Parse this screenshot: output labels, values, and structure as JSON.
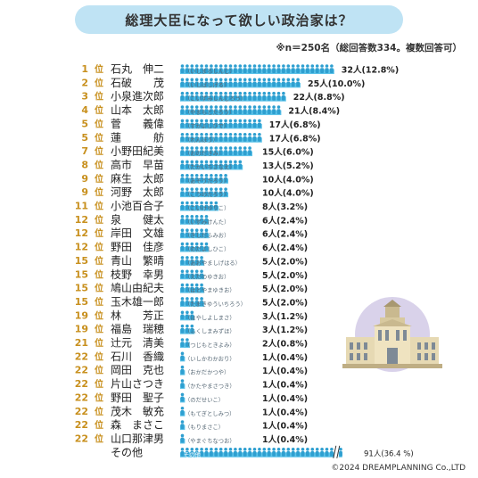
{
  "title": "総理大臣になって欲しい政治家は？",
  "note": "※n＝250名（総回答数334。複数回答可）",
  "copyright": "©2024 DREAMPLANNING Co.,LTD",
  "colors": {
    "bar": "#5dc3e9",
    "rank": "#c8901e",
    "figure": "#2e9fd0",
    "title_bg": "#bfe3f4"
  },
  "icons": {
    "person": "person-figure-icon",
    "building": "diet-building-icon"
  },
  "chart_data": {
    "type": "bar",
    "orientation": "horizontal",
    "bars": [
      {
        "rank": "1",
        "name": "石丸　伸二",
        "reading": "（いしまるしんじ）",
        "value": 32,
        "label": "32人(12.8%)"
      },
      {
        "rank": "2",
        "name": "石破　　茂",
        "reading": "（いしばしげる）",
        "value": 25,
        "label": "25人(10.0%)"
      },
      {
        "rank": "3",
        "name": "小泉進次郎",
        "reading": "（こいずみしんじろう）",
        "value": 22,
        "label": "22人(8.8%)"
      },
      {
        "rank": "4",
        "name": "山本　太郎",
        "reading": "（やまもとたろう）",
        "value": 21,
        "label": "21人(8.4%)"
      },
      {
        "rank": "5",
        "name": "菅　　義偉",
        "reading": "（すがよしひで）",
        "value": 17,
        "label": "17人(6.8%)"
      },
      {
        "rank": "5",
        "name": "蓮　　　舫",
        "reading": "（れんほう）",
        "value": 17,
        "label": "17人(6.8%)"
      },
      {
        "rank": "7",
        "name": "小野田紀美",
        "reading": "（おのだきみ）",
        "value": 15,
        "label": "15人(6.0%)"
      },
      {
        "rank": "8",
        "name": "高市　早苗",
        "reading": "（たかいちさなえ）",
        "value": 13,
        "label": "13人(5.2%)"
      },
      {
        "rank": "9",
        "name": "麻生　太郎",
        "reading": "（あそうたろう）",
        "value": 10,
        "label": "10人(4.0%)"
      },
      {
        "rank": "9",
        "name": "河野　太郎",
        "reading": "（こうのたろう）",
        "value": 10,
        "label": "10人(4.0%)"
      },
      {
        "rank": "11",
        "name": "小池百合子",
        "reading": "（こいけゆりこ）",
        "value": 8,
        "label": "8人(3.2%)"
      },
      {
        "rank": "12",
        "name": "泉　　健太",
        "reading": "（いずみけんた）",
        "value": 6,
        "label": "6人(2.4%)"
      },
      {
        "rank": "12",
        "name": "岸田　文雄",
        "reading": "（きしだふみお）",
        "value": 6,
        "label": "6人(2.4%)"
      },
      {
        "rank": "12",
        "name": "野田　佳彦",
        "reading": "（のだよしひこ）",
        "value": 6,
        "label": "6人(2.4%)"
      },
      {
        "rank": "15",
        "name": "青山　繁晴",
        "reading": "（あおやましげはる）",
        "value": 5,
        "label": "5人(2.0%)"
      },
      {
        "rank": "15",
        "name": "枝野　幸男",
        "reading": "（えだのゆきお）",
        "value": 5,
        "label": "5人(2.0%)"
      },
      {
        "rank": "15",
        "name": "鳩山由紀夫",
        "reading": "（はとやまゆきお）",
        "value": 5,
        "label": "5人(2.0%)"
      },
      {
        "rank": "15",
        "name": "玉木雄一郎",
        "reading": "（たまきゆういちろう）",
        "value": 5,
        "label": "5人(2.0%)"
      },
      {
        "rank": "19",
        "name": "林　　芳正",
        "reading": "（はやしよしまさ）",
        "value": 3,
        "label": "3人(1.2%)"
      },
      {
        "rank": "19",
        "name": "福島　瑞穂",
        "reading": "（ふくしまみずほ）",
        "value": 3,
        "label": "3人(1.2%)"
      },
      {
        "rank": "21",
        "name": "辻元　清美",
        "reading": "（つじもときよみ）",
        "value": 2,
        "label": "2人(0.8%)"
      },
      {
        "rank": "22",
        "name": "石川　香織",
        "reading": "（いしかわかおり）",
        "value": 1,
        "label": "1人(0.4%)"
      },
      {
        "rank": "22",
        "name": "岡田　克也",
        "reading": "（おかだかつや）",
        "value": 1,
        "label": "1人(0.4%)"
      },
      {
        "rank": "22",
        "name": "片山さつき",
        "reading": "（かたやまさつき）",
        "value": 1,
        "label": "1人(0.4%)"
      },
      {
        "rank": "22",
        "name": "野田　聖子",
        "reading": "（のだせいこ）",
        "value": 1,
        "label": "1人(0.4%)"
      },
      {
        "rank": "22",
        "name": "茂木　敏充",
        "reading": "（もてぎとしみつ）",
        "value": 1,
        "label": "1人(0.4%)"
      },
      {
        "rank": "22",
        "name": "森　まさこ",
        "reading": "（もりまさこ）",
        "value": 1,
        "label": "1人(0.4%)"
      },
      {
        "rank": "22",
        "name": "山口那津男",
        "reading": "（やまぐちなつお）",
        "value": 1,
        "label": "1人(0.4%)"
      },
      {
        "rank": "",
        "name": "その他",
        "reading": "その他",
        "value": 91,
        "label": "91人(36.4 %)",
        "broken": true
      }
    ],
    "rank_suffix": "位",
    "max_value": 32
  }
}
